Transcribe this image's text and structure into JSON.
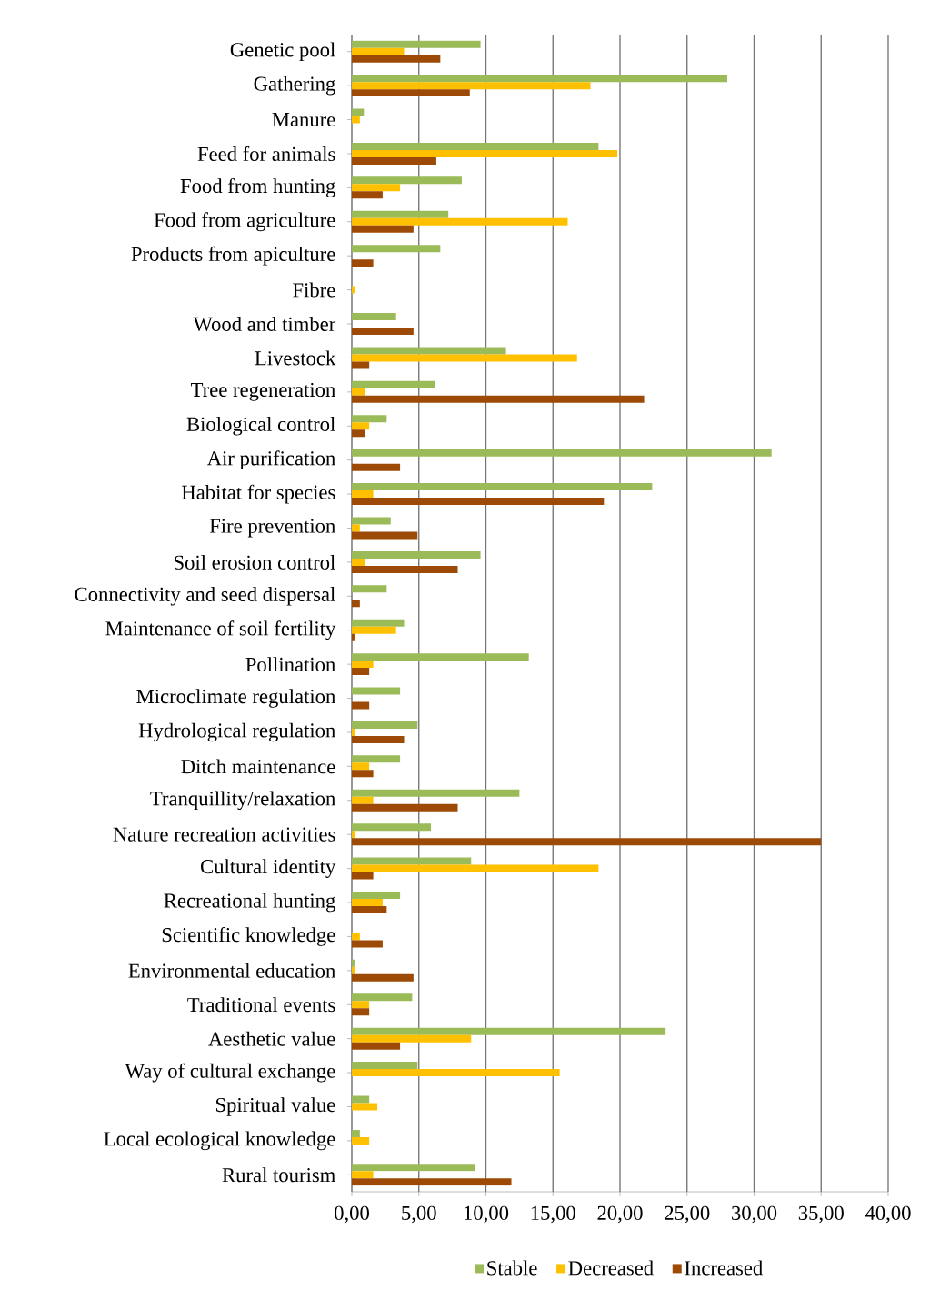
{
  "chart_data": {
    "type": "bar",
    "orientation": "horizontal",
    "categories": [
      "Genetic pool",
      "Gathering",
      "Manure",
      "Feed for animals",
      "Food from hunting",
      "Food from agriculture",
      "Products from apiculture",
      "Fibre",
      "Wood and timber",
      "Livestock",
      "Tree regeneration",
      "Biological control",
      "Air purification",
      "Habitat for species",
      "Fire prevention",
      "Soil erosion control",
      "Connectivity and seed dispersal",
      "Maintenance of soil fertility",
      "Pollination",
      "Microclimate regulation",
      "Hydrological regulation",
      "Ditch maintenance",
      "Tranquillity/relaxation",
      "Nature recreation activities",
      "Cultural identity",
      "Recreational hunting",
      "Scientific knowledge",
      "Environmental education",
      "Traditional events",
      "Aesthetic value",
      "Way of cultural exchange",
      "Spiritual value",
      "Local ecological knowledge",
      "Rural tourism"
    ],
    "series": [
      {
        "name": "Stable",
        "color": "#9bbb59",
        "values": [
          9.6,
          28.0,
          0.9,
          18.4,
          8.2,
          7.2,
          6.6,
          null,
          3.3,
          11.5,
          6.2,
          2.6,
          31.3,
          22.4,
          2.9,
          9.6,
          2.6,
          3.9,
          13.2,
          3.6,
          4.9,
          3.6,
          12.5,
          5.9,
          8.9,
          3.6,
          null,
          0.2,
          4.5,
          23.4,
          4.9,
          1.3,
          0.6,
          9.2
        ]
      },
      {
        "name": "Decreased",
        "color": "#ffc000",
        "values": [
          3.9,
          17.8,
          0.6,
          19.8,
          3.6,
          16.1,
          null,
          0.2,
          null,
          16.8,
          1.0,
          1.3,
          null,
          1.6,
          0.6,
          1.0,
          null,
          3.3,
          1.6,
          null,
          0.2,
          1.3,
          1.6,
          0.2,
          18.4,
          2.3,
          0.6,
          0.2,
          1.3,
          8.9,
          15.5,
          1.9,
          1.3,
          1.6
        ]
      },
      {
        "name": "Increased",
        "color": "#9c4a05",
        "values": [
          6.6,
          8.8,
          null,
          6.3,
          2.3,
          4.6,
          1.6,
          null,
          4.6,
          1.3,
          21.8,
          1.0,
          3.6,
          18.8,
          4.9,
          7.9,
          0.6,
          0.2,
          1.3,
          1.3,
          3.9,
          1.6,
          7.9,
          35.0,
          1.6,
          2.6,
          2.3,
          4.6,
          1.3,
          3.6,
          null,
          null,
          null,
          11.9
        ]
      }
    ],
    "xlim": [
      0,
      40
    ],
    "xticks": [
      {
        "value": 0,
        "label": "0,00"
      },
      {
        "value": 5,
        "label": "5,00"
      },
      {
        "value": 10,
        "label": "10,00"
      },
      {
        "value": 15,
        "label": "15,00"
      },
      {
        "value": 20,
        "label": "20,00"
      },
      {
        "value": 25,
        "label": "25,00"
      },
      {
        "value": 30,
        "label": "30,00"
      },
      {
        "value": 35,
        "label": "35,00"
      },
      {
        "value": 40,
        "label": "40,00"
      }
    ],
    "grid": "x",
    "legend": "bottom"
  }
}
